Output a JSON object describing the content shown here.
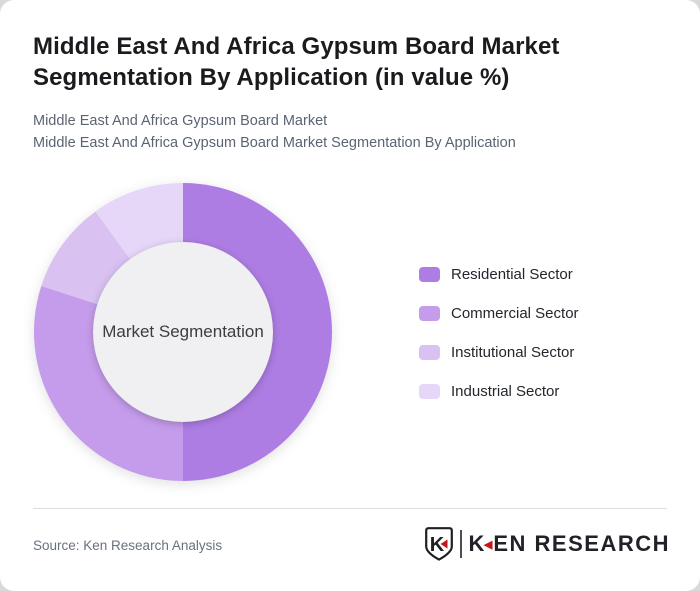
{
  "header": {
    "title_line1": "Middle East And Africa Gypsum Board Market",
    "title_line2": "Segmentation By Application (in value %)",
    "subtitle_line1": "Middle East And Africa Gypsum Board Market",
    "subtitle_line2": "Middle East And Africa Gypsum Board Market Segmentation By Application"
  },
  "chart_data": {
    "type": "pie",
    "style": "donut",
    "title": "Middle East And Africa Gypsum Board Market Segmentation By Application (in value %)",
    "center_label": "Market Segmentation",
    "categories": [
      "Residential Sector",
      "Commercial Sector",
      "Institutional Sector",
      "Industrial Sector"
    ],
    "values": [
      50,
      30,
      10,
      10
    ],
    "unit": "percent of value",
    "colors": [
      "#ae7de4",
      "#c59ceb",
      "#d9c2f2",
      "#e6d6f8"
    ],
    "hole_color": "#f0eff1",
    "start_angle": "top, clockwise",
    "legend_position": "right",
    "data_labels": false
  },
  "footer": {
    "source": "Source: Ken Research Analysis",
    "logo_shield_letter": "K",
    "logo_text_k": "K",
    "logo_text_rest": "EN RESEARCH",
    "logo_red": "#c4161c",
    "logo_dark": "#202227"
  }
}
